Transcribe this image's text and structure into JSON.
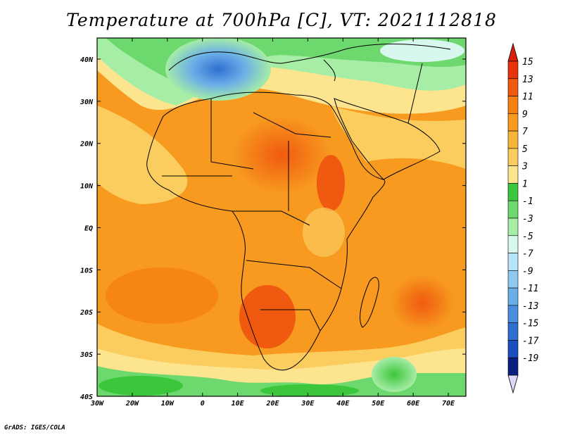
{
  "title": "Temperature at 700hPa [C], VT: 2021112818",
  "credit": "GrADS: IGES/COLA",
  "map": {
    "lat_ticks": [
      {
        "value": 40,
        "label": "40N"
      },
      {
        "value": 30,
        "label": "30N"
      },
      {
        "value": 20,
        "label": "20N"
      },
      {
        "value": 10,
        "label": "10N"
      },
      {
        "value": 0,
        "label": "EQ"
      },
      {
        "value": -10,
        "label": "10S"
      },
      {
        "value": -20,
        "label": "20S"
      },
      {
        "value": -30,
        "label": "30S"
      },
      {
        "value": -40,
        "label": "40S"
      }
    ],
    "lon_ticks": [
      {
        "value": -30,
        "label": "30W"
      },
      {
        "value": -20,
        "label": "20W"
      },
      {
        "value": -10,
        "label": "10W"
      },
      {
        "value": 0,
        "label": "0"
      },
      {
        "value": 10,
        "label": "10E"
      },
      {
        "value": 20,
        "label": "20E"
      },
      {
        "value": 30,
        "label": "30E"
      },
      {
        "value": 40,
        "label": "40E"
      },
      {
        "value": 50,
        "label": "50E"
      },
      {
        "value": 60,
        "label": "60E"
      },
      {
        "value": 70,
        "label": "70E"
      }
    ],
    "lon_range": [
      -30,
      75
    ],
    "lat_range": [
      -40,
      45
    ]
  },
  "colorbar": {
    "levels": [
      {
        "label": "15",
        "color": "#e8340c"
      },
      {
        "label": "13",
        "color": "#f05a10"
      },
      {
        "label": "11",
        "color": "#f57f12"
      },
      {
        "label": "9",
        "color": "#f79a1f"
      },
      {
        "label": "7",
        "color": "#f9b43a"
      },
      {
        "label": "5",
        "color": "#fbcc5e"
      },
      {
        "label": "3",
        "color": "#fde58f"
      },
      {
        "label": "1",
        "color": "#3cc63c"
      },
      {
        "label": "-1",
        "color": "#6dd86d"
      },
      {
        "label": "-3",
        "color": "#a6eda6"
      },
      {
        "label": "-5",
        "color": "#d8f7ef"
      },
      {
        "label": "-7",
        "color": "#b6e4f8"
      },
      {
        "label": "-9",
        "color": "#8ec9f0"
      },
      {
        "label": "-11",
        "color": "#6aaee8"
      },
      {
        "label": "-13",
        "color": "#4a8ede"
      },
      {
        "label": "-15",
        "color": "#2f6fd0"
      },
      {
        "label": "-17",
        "color": "#1a4fbd"
      },
      {
        "label": "-19",
        "color": "#0a1f80"
      }
    ],
    "top_cap_color": "#d8200a",
    "bottom_cap_color": "#dcd8f7"
  }
}
